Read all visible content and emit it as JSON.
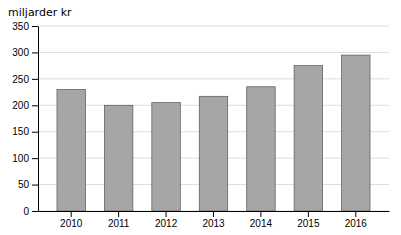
{
  "chart_data": {
    "type": "bar",
    "ylabel": "miljarder kr",
    "categories": [
      "2010",
      "2011",
      "2012",
      "2013",
      "2014",
      "2015",
      "2016"
    ],
    "values": [
      230,
      200,
      205,
      217,
      235,
      275,
      295
    ],
    "color": "#a6a6a6",
    "ylim": [
      0,
      350
    ],
    "yticks": [
      0,
      50,
      100,
      150,
      200,
      250,
      300,
      350
    ],
    "grid": true
  }
}
